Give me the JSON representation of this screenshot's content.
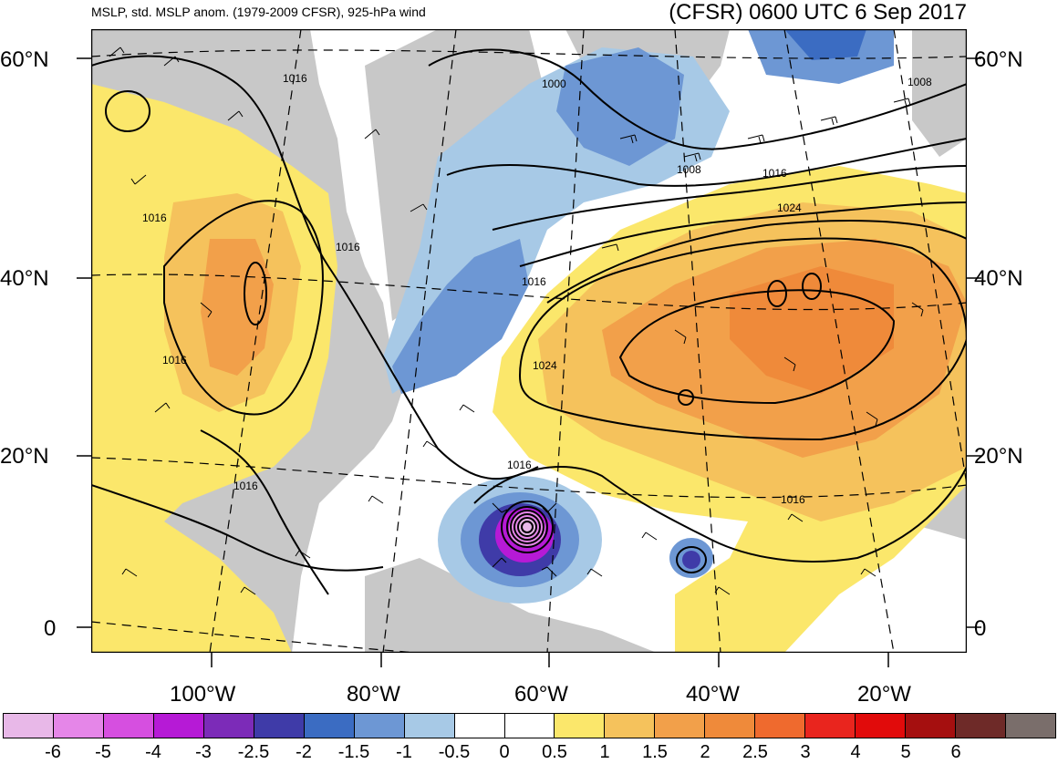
{
  "header": {
    "left_title": "MSLP, std. MSLP anom. (1979-2009 CFSR), 925-hPa wind",
    "right_title": "(CFSR) 0600 UTC 6 Sep 2017"
  },
  "axes": {
    "lat_labels": [
      "60°N",
      "40°N",
      "20°N",
      "0"
    ],
    "lon_labels": [
      "100°W",
      "80°W",
      "60°W",
      "40°W",
      "20°W"
    ]
  },
  "isobar_labels": [
    "1016",
    "1000",
    "1008",
    "1008",
    "1016",
    "1024",
    "1016",
    "1016",
    "1016",
    "1024",
    "1016",
    "1016",
    "1016",
    "1016"
  ],
  "colorbar": {
    "colors": [
      "#e8b8e8",
      "#e586e8",
      "#d64fe0",
      "#b61ad6",
      "#7c2bb8",
      "#3f3ba8",
      "#3b6cc2",
      "#6d97d4",
      "#a7c9e6",
      "#ffffff",
      "#ffffff",
      "#fbe76b",
      "#f5c25c",
      "#f2a04a",
      "#ef8a3a",
      "#ef6a2e",
      "#e9251e",
      "#e10b0b",
      "#a50f0f",
      "#6e2a28",
      "#7a6e6b"
    ],
    "tick_labels": [
      "-6",
      "-5",
      "-4",
      "-3",
      "-2.5",
      "-2",
      "-1.5",
      "-1",
      "-0.5",
      "0",
      "0.5",
      "1",
      "1.5",
      "2",
      "2.5",
      "3",
      "4",
      "5",
      "6"
    ]
  }
}
